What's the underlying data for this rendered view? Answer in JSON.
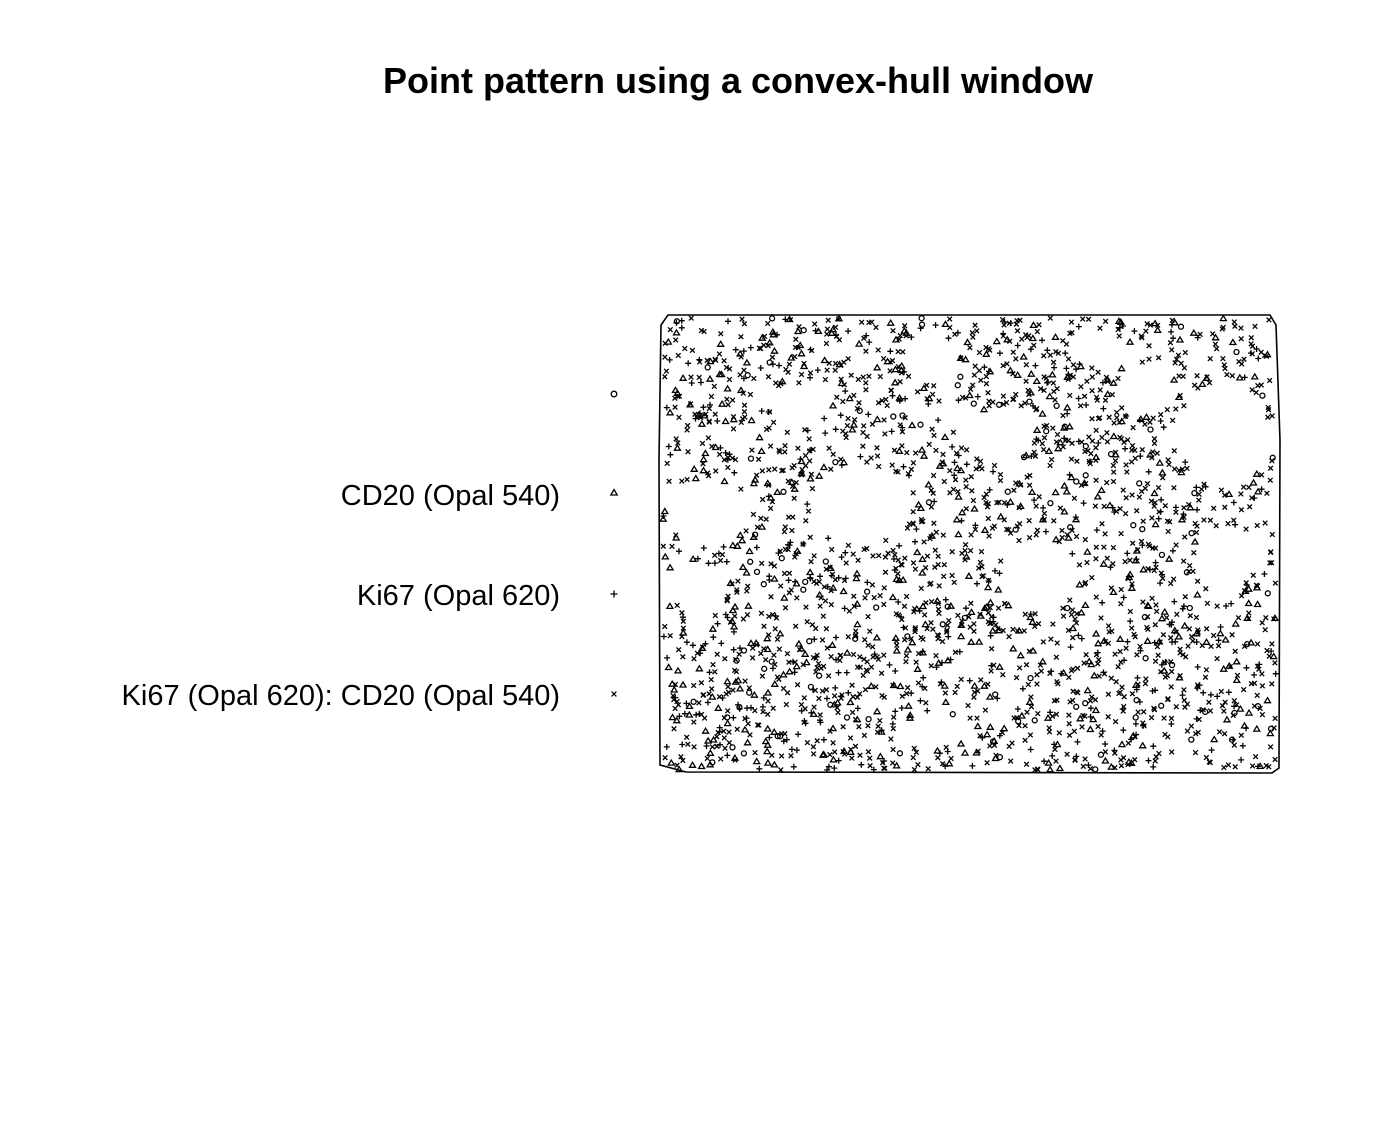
{
  "chart_data": {
    "type": "scatter",
    "title": "Point pattern using a convex-hull window",
    "xlabel": "",
    "ylabel": "",
    "window": "convex-hull",
    "axes": "none",
    "grid": false,
    "legend_position": "left",
    "marks": [
      {
        "label": "",
        "symbol": "circle"
      },
      {
        "label": "CD20 (Opal 540)",
        "symbol": "triangle"
      },
      {
        "label": "Ki67 (Opal 620)",
        "symbol": "plus"
      },
      {
        "label": "Ki67 (Opal 620): CD20 (Opal 540)",
        "symbol": "cross"
      }
    ],
    "colors": {
      "marks": "#000000",
      "background": "#ffffff"
    }
  }
}
